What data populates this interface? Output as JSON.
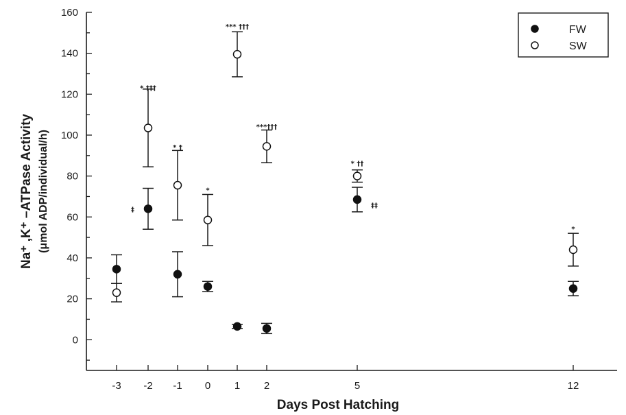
{
  "chart_data": {
    "type": "scatter",
    "title": "",
    "xlabel": "Days Post Hatching",
    "ylabel_main": "Na⁺ ,K⁺ –ATPase Activity",
    "ylabel_sub": "(μmol ADP/individual/h)",
    "x_ticks": [
      -3,
      -2,
      -1,
      0,
      1,
      2,
      5,
      12
    ],
    "y_ticks": [
      0,
      20,
      40,
      60,
      80,
      100,
      120,
      140,
      160
    ],
    "ylim": [
      -15,
      160
    ],
    "grid": false,
    "legend_position": "top-right",
    "series": [
      {
        "name": "FW",
        "marker": "filled-circle",
        "points": [
          {
            "x": -3,
            "y": 34.5,
            "err": 7
          },
          {
            "x": -2,
            "y": 64,
            "err": 10
          },
          {
            "x": -1,
            "y": 32,
            "err": 11
          },
          {
            "x": 0,
            "y": 26,
            "err": 2.5
          },
          {
            "x": 1,
            "y": 6.5,
            "err": 1
          },
          {
            "x": 2,
            "y": 5.5,
            "err": 2.5
          },
          {
            "x": 5,
            "y": 68.5,
            "err": 6
          },
          {
            "x": 12,
            "y": 25,
            "err": 3.5
          }
        ]
      },
      {
        "name": "SW",
        "marker": "open-circle",
        "points": [
          {
            "x": -3,
            "y": 23,
            "err": 4.5
          },
          {
            "x": -2,
            "y": 103.5,
            "err": 19
          },
          {
            "x": -1,
            "y": 75.5,
            "err": 17
          },
          {
            "x": 0,
            "y": 58.5,
            "err": 12.5
          },
          {
            "x": 1,
            "y": 139.5,
            "err": 11
          },
          {
            "x": 2,
            "y": 94.5,
            "err": 8
          },
          {
            "x": 5,
            "y": 80,
            "err": 3
          },
          {
            "x": 12,
            "y": 44,
            "err": 8
          }
        ]
      }
    ],
    "annotations": [
      {
        "x": -2,
        "y": 122,
        "text": "* †††"
      },
      {
        "x": -1,
        "y": 93,
        "text": "* †"
      },
      {
        "x": 0,
        "y": 72,
        "text": "*"
      },
      {
        "x": 1,
        "y": 152,
        "text": "***  †††"
      },
      {
        "x": 2,
        "y": 103,
        "text": "***†††"
      },
      {
        "x": 5,
        "y": 85,
        "text": "* ††"
      },
      {
        "x": 12,
        "y": 53,
        "text": "*"
      },
      {
        "x": -2,
        "y": 64,
        "text": "‡",
        "side": "left"
      },
      {
        "x": 5,
        "y": 66,
        "text": "‡‡",
        "side": "right"
      }
    ]
  }
}
